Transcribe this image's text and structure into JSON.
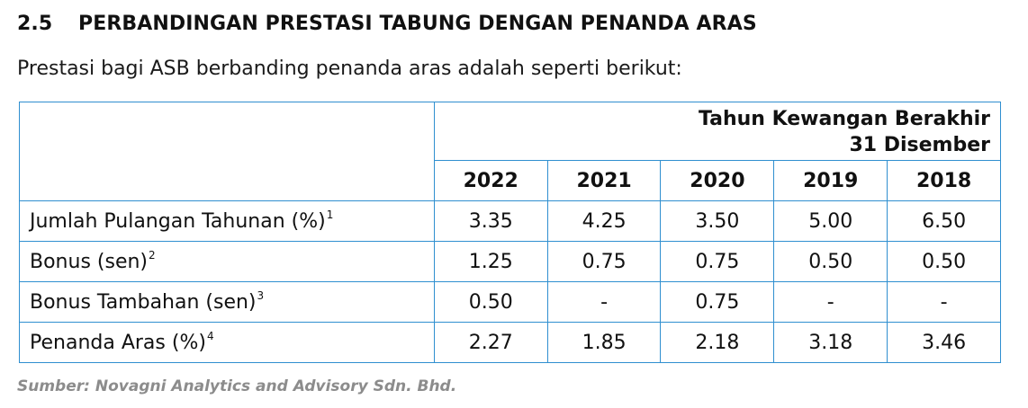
{
  "section": {
    "number": "2.5",
    "title": "PERBANDINGAN PRESTASI TABUNG DENGAN PENANDA ARAS"
  },
  "intro": "Prestasi bagi ASB berbanding penanda aras adalah seperti berikut:",
  "table": {
    "header_line1": "Tahun Kewangan Berakhir",
    "header_line2": "31 Disember",
    "years": [
      "2022",
      "2021",
      "2020",
      "2019",
      "2018"
    ],
    "rows": [
      {
        "label": "Jumlah Pulangan Tahunan (%)",
        "note": "1",
        "values": [
          "3.35",
          "4.25",
          "3.50",
          "5.00",
          "6.50"
        ]
      },
      {
        "label": "Bonus (sen)",
        "note": "2",
        "values": [
          "1.25",
          "0.75",
          "0.75",
          "0.50",
          "0.50"
        ]
      },
      {
        "label": "Bonus Tambahan (sen)",
        "note": "3",
        "values": [
          "0.50",
          "-",
          "0.75",
          "-",
          "-"
        ]
      },
      {
        "label": "Penanda Aras (%)",
        "note": "4",
        "values": [
          "2.27",
          "1.85",
          "2.18",
          "3.18",
          "3.46"
        ]
      }
    ]
  },
  "source": "Sumber: Novagni Analytics and Advisory Sdn. Bhd.",
  "colors": {
    "table_border": "#2f8fd0",
    "source_text": "#8c8c8c"
  }
}
